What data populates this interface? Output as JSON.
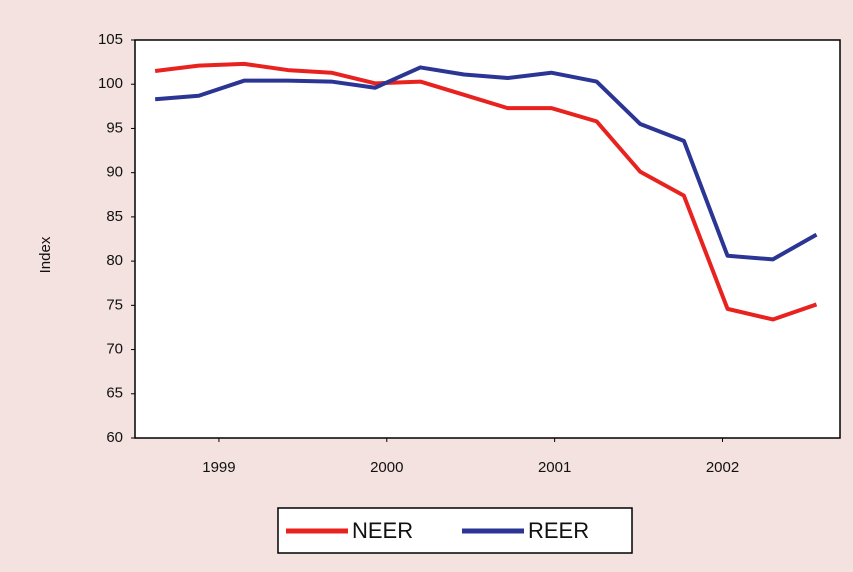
{
  "chart_data": {
    "type": "line",
    "y_label": "Index",
    "x": [
      1998.62,
      1998.88,
      1999.15,
      1999.41,
      1999.67,
      1999.93,
      2000.2,
      2000.46,
      2000.72,
      2000.98,
      2001.25,
      2001.51,
      2001.77,
      2002.03,
      2002.3,
      2002.56
    ],
    "series": [
      {
        "name": "NEER",
        "color": "#e8231f",
        "values": [
          101.5,
          102.1,
          102.3,
          101.6,
          101.3,
          100.1,
          100.3,
          98.8,
          97.3,
          97.3,
          95.8,
          90.1,
          87.4,
          74.6,
          73.4,
          75.1
        ]
      },
      {
        "name": "REER",
        "color": "#2b3594",
        "values": [
          98.3,
          98.7,
          100.4,
          100.4,
          100.3,
          99.6,
          101.9,
          101.1,
          100.7,
          101.3,
          100.3,
          95.5,
          93.6,
          80.6,
          80.2,
          83
        ]
      }
    ],
    "xlim": [
      1998.5,
      2002.7
    ],
    "xticks": [
      1999,
      2000,
      2001,
      2002
    ],
    "ylim": [
      60,
      105
    ],
    "yticks": [
      60,
      65,
      70,
      75,
      80,
      85,
      90,
      95,
      100,
      105
    ],
    "legend": "bottom"
  }
}
